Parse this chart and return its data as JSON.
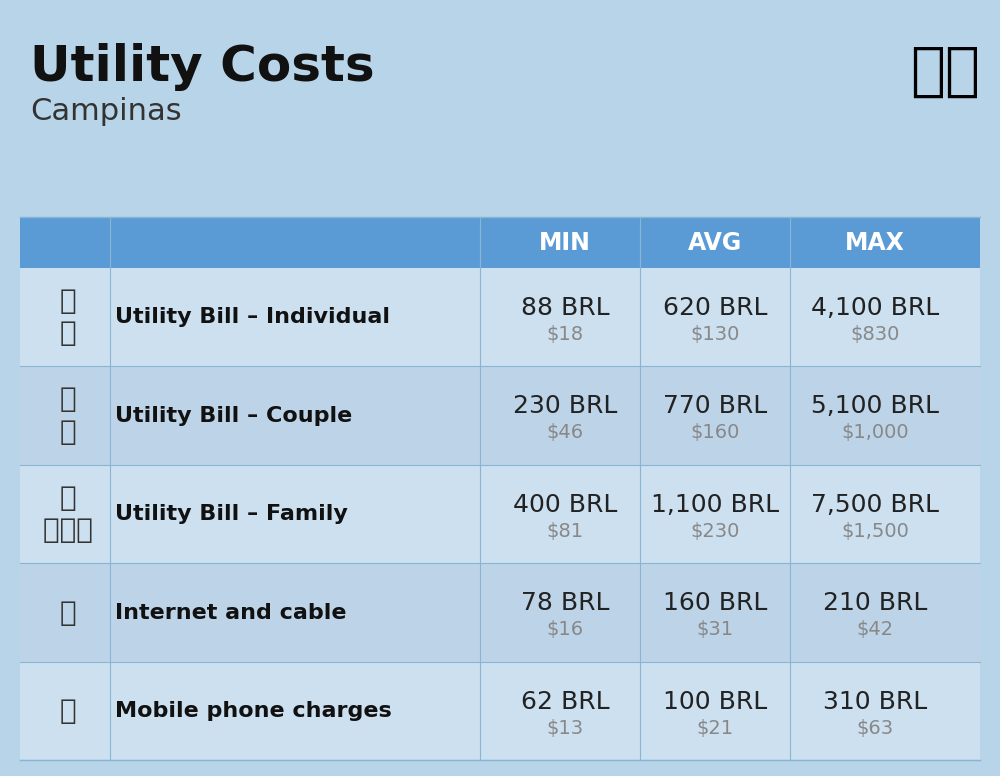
{
  "title": "Utility Costs",
  "subtitle": "Campinas",
  "background_color": "#b8d4e8",
  "header_bg_color": "#5b9bd5",
  "header_text_color": "#ffffff",
  "row_bg_light": "#cce0f0",
  "row_bg_dark": "#b8d0e8",
  "divider_color": "#8ab4d4",
  "columns": [
    "MIN",
    "AVG",
    "MAX"
  ],
  "rows": [
    {
      "label": "Utility Bill – Individual",
      "min_brl": "88 BRL",
      "min_usd": "$18",
      "avg_brl": "620 BRL",
      "avg_usd": "$130",
      "max_brl": "4,100 BRL",
      "max_usd": "$830"
    },
    {
      "label": "Utility Bill – Couple",
      "min_brl": "230 BRL",
      "min_usd": "$46",
      "avg_brl": "770 BRL",
      "avg_usd": "$160",
      "max_brl": "5,100 BRL",
      "max_usd": "$1,000"
    },
    {
      "label": "Utility Bill – Family",
      "min_brl": "400 BRL",
      "min_usd": "$81",
      "avg_brl": "1,100 BRL",
      "avg_usd": "$230",
      "max_brl": "7,500 BRL",
      "max_usd": "$1,500"
    },
    {
      "label": "Internet and cable",
      "min_brl": "78 BRL",
      "min_usd": "$16",
      "avg_brl": "160 BRL",
      "avg_usd": "$31",
      "max_brl": "210 BRL",
      "max_usd": "$42"
    },
    {
      "label": "Mobile phone charges",
      "min_brl": "62 BRL",
      "min_usd": "$13",
      "avg_brl": "100 BRL",
      "avg_usd": "$21",
      "max_brl": "310 BRL",
      "max_usd": "$63"
    }
  ],
  "title_fontsize": 36,
  "subtitle_fontsize": 22,
  "header_fontsize": 17,
  "label_fontsize": 16,
  "value_fontsize": 18,
  "usd_fontsize": 14,
  "usd_color": "#888888",
  "label_color": "#111111",
  "value_color": "#222222"
}
